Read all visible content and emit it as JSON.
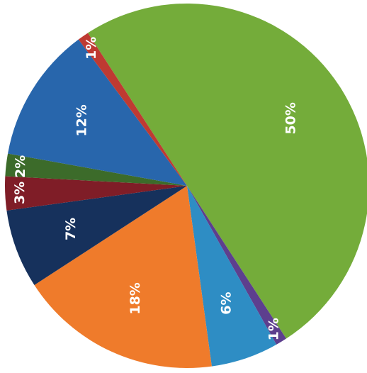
{
  "chart_data": {
    "type": "pie",
    "title": "",
    "slices": [
      {
        "label": "50%",
        "value": 50,
        "color": "#74ac3a"
      },
      {
        "label": "1%",
        "value": 1,
        "color": "#5d3f8e"
      },
      {
        "label": "6%",
        "value": 6,
        "color": "#2e8dc4"
      },
      {
        "label": "18%",
        "value": 18,
        "color": "#ef7b2b"
      },
      {
        "label": "7%",
        "value": 7,
        "color": "#16315c"
      },
      {
        "label": "3%",
        "value": 3,
        "color": "#7f1d27"
      },
      {
        "label": "2%",
        "value": 2,
        "color": "#3c6b2a"
      },
      {
        "label": "12%",
        "value": 12,
        "color": "#2866ac"
      },
      {
        "label": "1%",
        "value": 1,
        "color": "#bf3a32"
      }
    ],
    "legend": "none",
    "grid": false
  }
}
